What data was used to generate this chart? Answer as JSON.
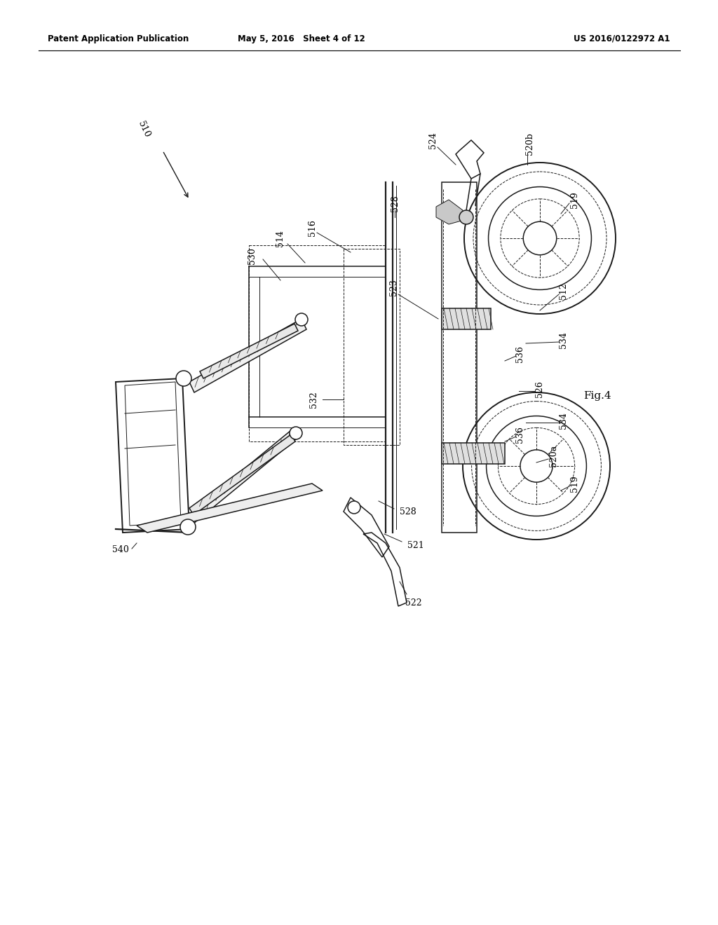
{
  "bg_color": "#ffffff",
  "header_left": "Patent Application Publication",
  "header_mid": "May 5, 2016   Sheet 4 of 12",
  "header_right": "US 2016/0122972 A1",
  "fig_label": "Fig.4",
  "line_color": "#1a1a1a",
  "thin_line": 0.7,
  "med_line": 1.1,
  "thick_line": 1.6,
  "dpi": 100,
  "figw": 10.24,
  "figh": 13.2
}
